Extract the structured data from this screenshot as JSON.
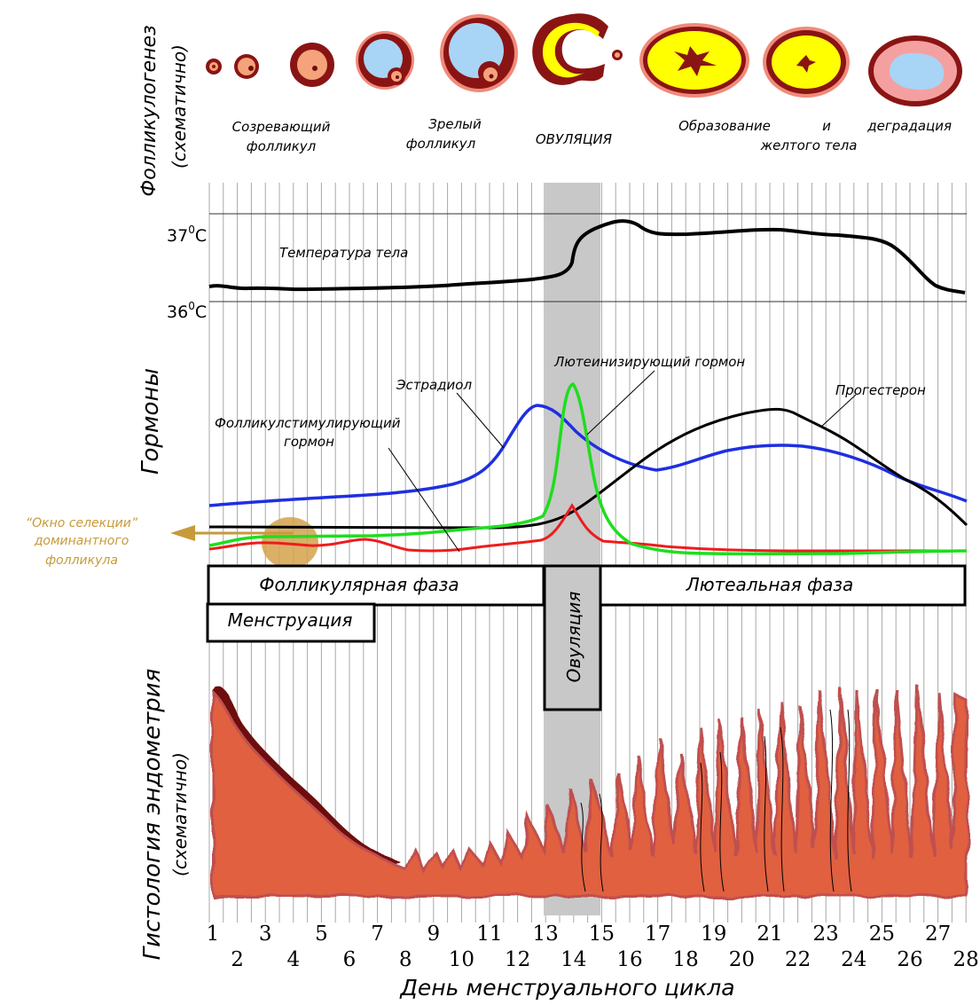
{
  "side_labels": {
    "folliculogenesis": "Фолликулогенез",
    "schematic": "(схематично)",
    "hormones": "Гормоны",
    "histology": "Гистология эндометрия",
    "schematic_2": "(схематично)"
  },
  "follicle_captions": {
    "maturing_1": "Созревающий",
    "maturing_2": "фолликул",
    "mature_1": "Зрелый",
    "mature_2": "фолликул",
    "ovulation": "ОВУЛЯЦИЯ",
    "corpus_1a": "Образование",
    "corpus_1b": "и",
    "corpus_1c": "деградация",
    "corpus_2": "желтого тела"
  },
  "temperature": {
    "label": "Температура тела",
    "t37": "37",
    "t36": "36",
    "deg": "0",
    "unit": "C"
  },
  "hormone_labels": {
    "lh": "Лютеинизирующий гормон",
    "estradiol": "Эстрадиол",
    "progesterone": "Прогестерон",
    "fsh_1": "Фолликулстимулирующий",
    "fsh_2": "гормон"
  },
  "selection_window": {
    "line1": "“Окно селекции”",
    "line2": "доминантного",
    "line3": "фолликула"
  },
  "phases": {
    "follicular": "Фолликулярная фаза",
    "luteal": "Лютеальная фаза",
    "ovulation": "Овуляция",
    "menstruation": "Менструация"
  },
  "x_axis": {
    "label": "День менструального цикла",
    "odd": [
      "1",
      "3",
      "5",
      "7",
      "9",
      "11",
      "13",
      "15",
      "17",
      "19",
      "21",
      "23",
      "25",
      "27"
    ],
    "even": [
      "2",
      "4",
      "6",
      "8",
      "10",
      "12",
      "14",
      "16",
      "18",
      "20",
      "22",
      "24",
      "26",
      "28"
    ]
  },
  "colors": {
    "estradiol": "#1f2fe0",
    "lh": "#1fdd1f",
    "fsh": "#ee1c1c",
    "progesterone": "#000000",
    "temperature": "#000000",
    "ovulation_band": "#c8c8c8",
    "endometrium": "#e06040",
    "endometrium_dark": "#6e0e0e",
    "selection_window": "#d4a24c",
    "selection_text": "#c79a3a",
    "follicle_dark": "#8a1414",
    "follicle_light": "#f5a37a",
    "antrum": "#a8d4f5",
    "corpus_yellow": "#ffff00"
  },
  "chart_data": {
    "type": "line",
    "x": [
      1,
      2,
      3,
      4,
      5,
      6,
      7,
      8,
      9,
      10,
      11,
      12,
      13,
      14,
      15,
      16,
      17,
      18,
      19,
      20,
      21,
      22,
      23,
      24,
      25,
      26,
      27,
      28
    ],
    "series": [
      {
        "name": "Температура тела",
        "unit": "°C",
        "values": [
          36.2,
          36.2,
          36.15,
          36.15,
          36.15,
          36.15,
          36.17,
          36.18,
          36.2,
          36.22,
          36.24,
          36.26,
          36.3,
          36.8,
          36.9,
          36.85,
          36.75,
          36.75,
          36.75,
          36.77,
          36.78,
          36.78,
          36.75,
          36.72,
          36.65,
          36.5,
          36.2,
          36.1
        ]
      },
      {
        "name": "Эстрадиол",
        "values": [
          15,
          16,
          16,
          17,
          18,
          18,
          19,
          21,
          24,
          28,
          38,
          60,
          83,
          70,
          60,
          52,
          49,
          52,
          56,
          58,
          59,
          59,
          57,
          55,
          49,
          40,
          32,
          24
        ]
      },
      {
        "name": "Лютеинизирующий гормон",
        "values": [
          5,
          7,
          7,
          7,
          7,
          7,
          8,
          8,
          9,
          10,
          11,
          11,
          12,
          90,
          20,
          6,
          4,
          3,
          3,
          3,
          3,
          3,
          3,
          3,
          3,
          3,
          4,
          4
        ]
      },
      {
        "name": "Фолликулстимулирующий гормон",
        "values": [
          4,
          5,
          7,
          6,
          6,
          7,
          7,
          4,
          4,
          4,
          5,
          6,
          7,
          21,
          8,
          7,
          5,
          4,
          4,
          4,
          4,
          4,
          4,
          4,
          4,
          4,
          4,
          4
        ]
      },
      {
        "name": "Прогестерон",
        "values": [
          10,
          10,
          10,
          10,
          10,
          10,
          10,
          10,
          10,
          10,
          10,
          11,
          13,
          18,
          27,
          40,
          53,
          63,
          70,
          76,
          80,
          78,
          72,
          60,
          50,
          40,
          28,
          16
        ]
      }
    ],
    "xlabel": "День менструального цикла",
    "ovulation_days": [
      13,
      15
    ]
  }
}
